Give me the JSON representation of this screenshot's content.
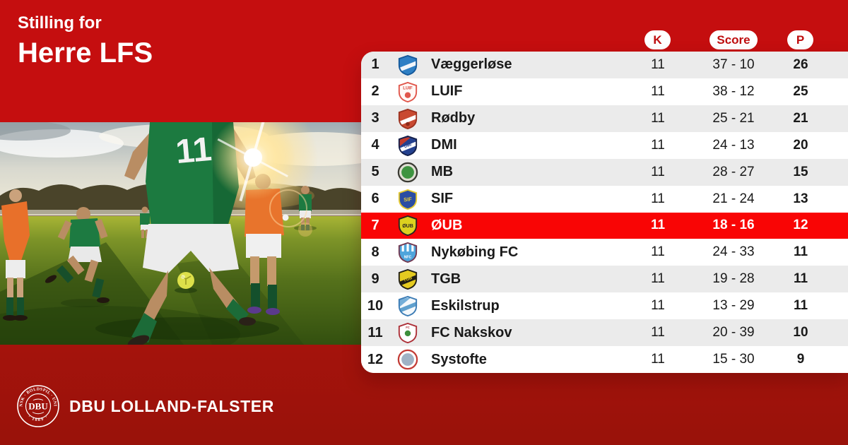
{
  "page": {
    "title_small": "Stilling for",
    "title_large": "Herre LFS"
  },
  "photo": {
    "jersey_number": "11"
  },
  "table": {
    "headers": [
      {
        "key": "k",
        "label": "K"
      },
      {
        "key": "score",
        "label": "Score"
      },
      {
        "key": "p",
        "label": "P"
      }
    ],
    "rows": [
      {
        "pos": "1",
        "team": "Væggerløse",
        "k": "11",
        "score": "37 - 10",
        "p": "26",
        "highlight": false,
        "logo": {
          "shape": "shield",
          "base": "#2E7FC4",
          "border": "#15599B",
          "stripe": "#F2F6FA"
        }
      },
      {
        "pos": "2",
        "team": "LUIF",
        "k": "11",
        "score": "38 - 12",
        "p": "25",
        "highlight": false,
        "logo": {
          "shape": "shield",
          "base": "#FFF8F6",
          "border": "#E0564B",
          "mono": "LUIF",
          "monoColor": "#D8453B",
          "monoSize": 6.5,
          "monoY": 12.5,
          "dot": "#E0564B",
          "dotY": 21,
          "dotR": 4.5
        }
      },
      {
        "pos": "3",
        "team": "Rødby",
        "k": "11",
        "score": "25 - 21",
        "p": "21",
        "highlight": false,
        "logo": {
          "shape": "shield",
          "base": "#C94A31",
          "border": "#9C3220",
          "stripe": "#FFFFFF",
          "dot": "#8C2A1A",
          "dotY": 24,
          "dotR": 3
        }
      },
      {
        "pos": "4",
        "team": "DMI",
        "k": "11",
        "score": "24 - 13",
        "p": "20",
        "highlight": false,
        "logo": {
          "shape": "shield",
          "base": "#24418F",
          "border": "#131F4A",
          "corner": "#C23B2C",
          "stripe": "#FFFFFF",
          "mono": "DMI",
          "monoColor": "#24418F",
          "monoSize": 6,
          "monoY": 18,
          "tilt": -20
        }
      },
      {
        "pos": "5",
        "team": "MB",
        "k": "11",
        "score": "28 - 27",
        "p": "15",
        "highlight": false,
        "logo": {
          "shape": "circle",
          "base": "#DFDFD3",
          "border": "#3A3A33",
          "ring": "#3E9440"
        }
      },
      {
        "pos": "6",
        "team": "SIF",
        "k": "11",
        "score": "21 - 24",
        "p": "13",
        "highlight": false,
        "logo": {
          "shape": "shield",
          "base": "#2B4DA3",
          "border": "#E5C930",
          "mono": "SIF",
          "monoColor": "#E8CC35",
          "monoSize": 8,
          "monoY": 19,
          "tilt": -6
        }
      },
      {
        "pos": "7",
        "team": "ØUB",
        "k": "11",
        "score": "18 - 16",
        "p": "12",
        "highlight": true,
        "logo": {
          "shape": "shield",
          "base": "#DCD11F",
          "border": "#2A2620",
          "mono": "ØUB",
          "monoColor": "#2A2620",
          "monoSize": 7.5,
          "monoY": 19
        }
      },
      {
        "pos": "8",
        "team": "Nykøbing FC",
        "k": "11",
        "score": "24 - 33",
        "p": "11",
        "highlight": false,
        "logo": {
          "shape": "shield",
          "base": "#4FA5DC",
          "border": "#733A52",
          "bars": "#FFFFFF",
          "mono": "NFC",
          "monoColor": "#FFFFFF",
          "monoSize": 5.5,
          "monoY": 25
        }
      },
      {
        "pos": "9",
        "team": "TGB",
        "k": "11",
        "score": "19 - 28",
        "p": "11",
        "highlight": false,
        "logo": {
          "shape": "shield",
          "base": "#E5CB20",
          "border": "#221F15",
          "stripe": "#221F15",
          "mono": "TGB",
          "monoColor": "#E5CB20",
          "monoSize": 6.5,
          "monoY": 18,
          "tilt": -20
        }
      },
      {
        "pos": "10",
        "team": "Eskilstrup",
        "k": "11",
        "score": "13 - 29",
        "p": "11",
        "highlight": false,
        "logo": {
          "shape": "shield",
          "base": "#F4F8FB",
          "border": "#3C7CB5",
          "corner": "#74AED8",
          "stripe": "#5FA0CE"
        }
      },
      {
        "pos": "11",
        "team": "FC Nakskov",
        "k": "11",
        "score": "20 - 39",
        "p": "10",
        "highlight": false,
        "logo": {
          "shape": "shield",
          "base": "#FFFFFF",
          "border": "#AD3038",
          "mono": "FC",
          "monoColor": "#AD3038",
          "monoSize": 4.5,
          "monoY": 9.5,
          "dot": "#3E8F3C",
          "dotY": 17,
          "dotR": 4.5
        }
      },
      {
        "pos": "12",
        "team": "Systofte",
        "k": "11",
        "score": "15 - 30",
        "p": "9",
        "highlight": false,
        "logo": {
          "shape": "circle",
          "base": "#FFFFFF",
          "border": "#C23B35",
          "ring": "#9FB2C5"
        }
      }
    ]
  },
  "footer": {
    "brand": "DBU LOLLAND-FALSTER",
    "seal": {
      "arc_top": "DANSK · BOLDSPIL · UNION",
      "monogram": "DBU",
      "arc_bottom": "· 1889 ·"
    }
  },
  "colors": {
    "background_red": "#C50E0F",
    "background_dark_red": "#99120A",
    "highlight_row_red": "#F90505",
    "pill_text_red": "#BE0D0E",
    "row_alt_gray": "#EBEBEB",
    "text_dark": "#1A1A1A"
  },
  "chart_data": {
    "type": "table",
    "title": "Stilling for Herre LFS",
    "columns": [
      "Position",
      "Team",
      "K",
      "Score",
      "P"
    ],
    "rows": [
      [
        "1",
        "Væggerløse",
        11,
        "37 - 10",
        26
      ],
      [
        "2",
        "LUIF",
        11,
        "38 - 12",
        25
      ],
      [
        "3",
        "Rødby",
        11,
        "25 - 21",
        21
      ],
      [
        "4",
        "DMI",
        11,
        "24 - 13",
        20
      ],
      [
        "5",
        "MB",
        11,
        "28 - 27",
        15
      ],
      [
        "6",
        "SIF",
        11,
        "21 - 24",
        13
      ],
      [
        "7",
        "ØUB",
        11,
        "18 - 16",
        12
      ],
      [
        "8",
        "Nykøbing FC",
        11,
        "24 - 33",
        11
      ],
      [
        "9",
        "TGB",
        11,
        "19 - 28",
        11
      ],
      [
        "10",
        "Eskilstrup",
        11,
        "13 - 29",
        11
      ],
      [
        "11",
        "FC Nakskov",
        11,
        "20 - 39",
        10
      ],
      [
        "12",
        "Systofte",
        11,
        "15 - 30",
        9
      ]
    ],
    "highlighted_row": "7 ØUB"
  }
}
